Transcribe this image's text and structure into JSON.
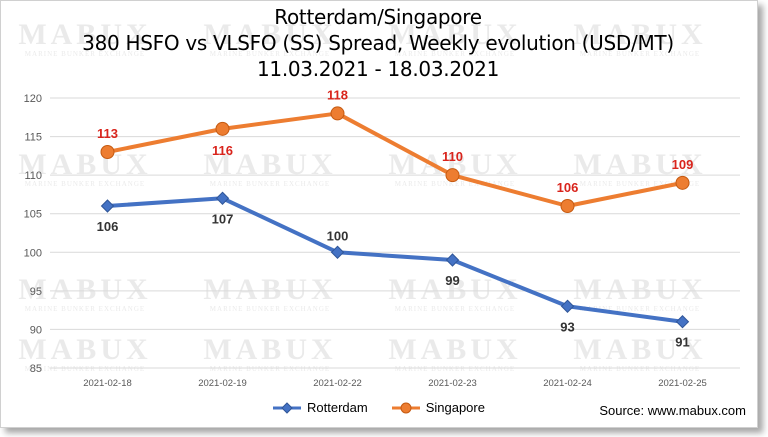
{
  "header": {
    "title_line1": "Rotterdam/Singapore",
    "title_line2": "380 HSFO vs VLSFO (SS) Spread, Weekly evolution (USD/MT)",
    "title_line3": "11.03.2021 - 18.03.2021"
  },
  "watermark": {
    "brand": "MABUX",
    "tagline": "MARINE BUNKER EXCHANGE"
  },
  "source": "Source: www.mabux.com",
  "colors": {
    "rotterdam": "#4472C4",
    "singapore": "#ED7D31",
    "singapore_label": "#D9241C",
    "rotterdam_label": "#333333",
    "grid": "#D9D9D9"
  },
  "chart_data": {
    "type": "line",
    "categories": [
      "2021-02-18",
      "2021-02-19",
      "2021-02-22",
      "2021-02-23",
      "2021-02-24",
      "2021-02-25"
    ],
    "series": [
      {
        "name": "Rotterdam",
        "values": [
          106,
          107,
          100,
          99,
          93,
          91
        ],
        "marker": "diamond"
      },
      {
        "name": "Singapore",
        "values": [
          113,
          116,
          118,
          110,
          106,
          109
        ],
        "marker": "circle"
      }
    ],
    "ylim": [
      85,
      120
    ],
    "yticks": [
      85,
      90,
      95,
      100,
      105,
      110,
      115,
      120
    ],
    "grid": true,
    "legend_position": "bottom"
  }
}
